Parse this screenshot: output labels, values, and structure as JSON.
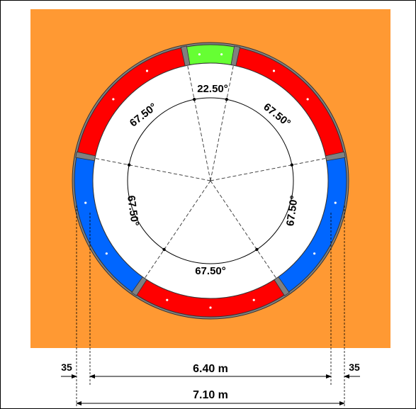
{
  "angles": {
    "top": "22.50°",
    "upper_left": "67.50°",
    "upper_right": "67.50°",
    "left": "67.50°",
    "right": "67.50°",
    "bottom": "67.50°"
  },
  "dimensions": {
    "left_offset": "35",
    "right_offset": "35",
    "inner_diameter": "6.40 m",
    "outer_diameter": "7.10 m"
  },
  "colors": {
    "ground": "#FF9933",
    "outer_ring": "#808080",
    "segment_red": "#FF0000",
    "segment_blue": "#0066FF",
    "key_segment": "#66FF33",
    "tunnel_interior": "#FFFFFF"
  }
}
